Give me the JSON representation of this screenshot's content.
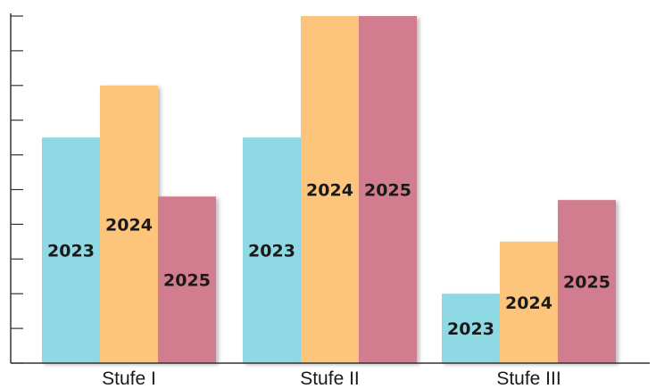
{
  "chart_data": {
    "type": "bar",
    "categories": [
      "Stufe I",
      "Stufe II",
      "Stufe III"
    ],
    "series": [
      {
        "name": "2023",
        "values": [
          6.5,
          6.5,
          2.0
        ],
        "color": "#8fd9e4"
      },
      {
        "name": "2024",
        "values": [
          8.0,
          10.0,
          3.5
        ],
        "color": "#fdc57c"
      },
      {
        "name": "2025",
        "values": [
          4.8,
          10.0,
          4.7
        ],
        "color": "#d27b90"
      }
    ],
    "ylim": [
      0,
      10
    ],
    "y_ticks": [
      0,
      1,
      2,
      3,
      4,
      5,
      6,
      7,
      8,
      9,
      10
    ],
    "y_tick_labels_shown": false,
    "grid": false,
    "legend": "none",
    "bar_labels": "series name inside each bar",
    "title": "",
    "xlabel": "",
    "ylabel": ""
  }
}
